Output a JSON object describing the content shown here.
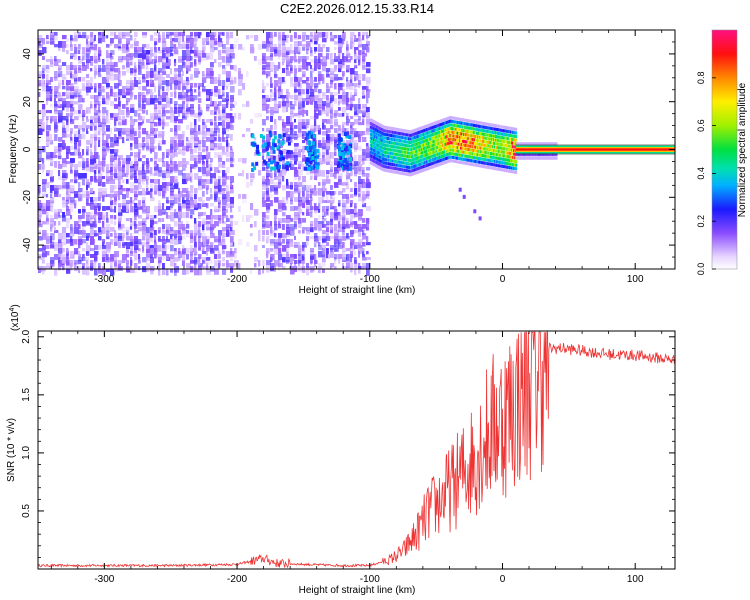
{
  "title": "C2E2.2026.012.15.33.R14",
  "chart_data": [
    {
      "type": "heatmap",
      "title": "C2E2.2026.012.15.33.R14",
      "xlabel": "Height of straight line (km)",
      "ylabel": "Frequency (Hz)",
      "xlim": [
        -350,
        130
      ],
      "ylim": [
        -50,
        50
      ],
      "x_ticks": [
        -300,
        -200,
        -100,
        0,
        100
      ],
      "x_tick_labels": [
        "-300",
        "-200",
        "-100",
        "0",
        "100"
      ],
      "y_ticks": [
        -40,
        -20,
        0,
        20,
        40
      ],
      "y_tick_labels": [
        "-40",
        "-20",
        "0",
        "20",
        "40"
      ],
      "colorbar": {
        "label": "Normalized spectral amplitude",
        "range": [
          0,
          1
        ],
        "ticks": [
          0.0,
          0.2,
          0.4,
          0.6,
          0.8
        ],
        "tick_labels": [
          "0.0",
          "0.2",
          "0.4",
          "0.6",
          "0.8"
        ]
      },
      "regions": [
        {
          "name": "broadband noise",
          "x_range": [
            -350,
            -100
          ],
          "freq_range": [
            -50,
            50
          ],
          "amplitude": 0.15
        },
        {
          "name": "gap",
          "x_range": [
            -203,
            -183
          ],
          "freq_range": [
            -50,
            50
          ],
          "amplitude": 0.02
        },
        {
          "name": "signal ridge",
          "x_range": [
            -100,
            10
          ],
          "freq_center": 3,
          "amplitude": 0.5
        },
        {
          "name": "steady tone",
          "x_range": [
            10,
            130
          ],
          "freq_center": 0,
          "amplitude": 0.9
        }
      ],
      "ridge": {
        "x": [
          -100,
          -90,
          -80,
          -70,
          -60,
          -50,
          -40,
          -30,
          -20,
          -10,
          0,
          10
        ],
        "freq": [
          4,
          1,
          0,
          -1,
          1,
          3,
          5,
          4,
          3,
          2,
          1,
          0
        ],
        "amplitude": [
          0.3,
          0.35,
          0.4,
          0.45,
          0.5,
          0.55,
          0.75,
          0.8,
          0.7,
          0.6,
          0.55,
          0.9
        ]
      }
    },
    {
      "type": "line",
      "xlabel": "Height of straight line (km)",
      "ylabel": "SNR (10 * v/v)",
      "yscale_label": "(x10",
      "yscale_exponent": "4",
      "xlim": [
        -350,
        130
      ],
      "ylim": [
        0,
        2.05
      ],
      "x_ticks": [
        -300,
        -200,
        -100,
        0,
        100
      ],
      "x_tick_labels": [
        "-300",
        "-200",
        "-100",
        "0",
        "100"
      ],
      "y_ticks": [
        0.5,
        1.0,
        1.5,
        2.0
      ],
      "y_tick_labels": [
        "0.5",
        "1.0",
        "1.5",
        "2.0"
      ],
      "series": [
        {
          "color": "#ee3333",
          "x": [
            -350,
            -300,
            -250,
            -200,
            -180,
            -170,
            -150,
            -120,
            -100,
            -85,
            -75,
            -65,
            -55,
            -45,
            -35,
            -25,
            -15,
            -5,
            5,
            15,
            25,
            35,
            45,
            60,
            80,
            100,
            130
          ],
          "y": [
            0.03,
            0.03,
            0.03,
            0.04,
            0.09,
            0.05,
            0.04,
            0.03,
            0.03,
            0.08,
            0.15,
            0.3,
            0.5,
            0.62,
            0.75,
            0.9,
            1.1,
            1.25,
            1.35,
            1.55,
            1.75,
            1.9,
            1.9,
            1.88,
            1.85,
            1.84,
            1.8
          ]
        }
      ]
    }
  ]
}
